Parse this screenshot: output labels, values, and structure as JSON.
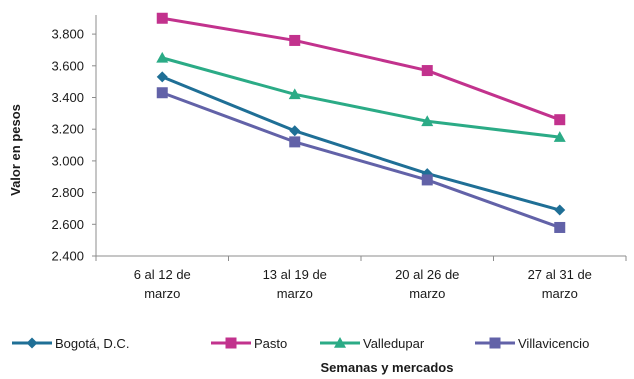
{
  "chart_data": {
    "type": "line",
    "categories": [
      [
        "6 al 12 de",
        "marzo"
      ],
      [
        "13 al 19 de",
        "marzo"
      ],
      [
        "20 al 26 de",
        "marzo"
      ],
      [
        "27 al 31 de",
        "marzo"
      ]
    ],
    "series": [
      {
        "name": "Bogotá, D.C.",
        "values": [
          3530,
          3190,
          2920,
          2690
        ],
        "color": "#1f6f96",
        "marker": "diamond"
      },
      {
        "name": "Pasto",
        "values": [
          3900,
          3760,
          3570,
          3260
        ],
        "color": "#c2328d",
        "marker": "square"
      },
      {
        "name": "Valledupar",
        "values": [
          3650,
          3420,
          3250,
          3150
        ],
        "color": "#2bab86",
        "marker": "triangle"
      },
      {
        "name": "Villavicencio",
        "values": [
          3430,
          3120,
          2880,
          2580
        ],
        "color": "#6262a8",
        "marker": "square"
      }
    ],
    "xlabel": "Semanas y mercados",
    "ylabel": "Valor en pesos",
    "ylim": [
      2400,
      3900
    ],
    "yticks": [
      "2.400",
      "2.600",
      "2.800",
      "3.000",
      "3.200",
      "3.400",
      "3.600",
      "3.800"
    ],
    "ytick_values": [
      2400,
      2600,
      2800,
      3000,
      3200,
      3400,
      3600,
      3800
    ],
    "grid": false,
    "legend_position": "bottom"
  }
}
